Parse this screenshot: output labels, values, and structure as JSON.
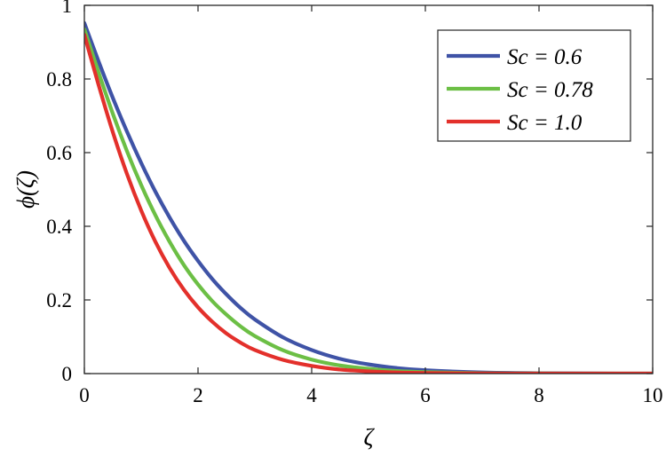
{
  "chart_data": {
    "type": "line",
    "xlabel": "ζ",
    "ylabel": "ϕ(ζ)",
    "xlim": [
      0,
      10
    ],
    "ylim": [
      0,
      1
    ],
    "xticks": [
      "0",
      "2",
      "4",
      "6",
      "8",
      "10"
    ],
    "yticks": [
      "0",
      "0.2",
      "0.4",
      "0.6",
      "0.8",
      "1"
    ],
    "grid": false,
    "legend_position": "top-right",
    "x": [
      0,
      0.25,
      0.5,
      0.75,
      1,
      1.25,
      1.5,
      1.75,
      2,
      2.25,
      2.5,
      2.75,
      3,
      3.5,
      4,
      4.5,
      5,
      5.5,
      6,
      7,
      8,
      9,
      10
    ],
    "series": [
      {
        "name": "Sc = 0.6",
        "color": "#3f53a6",
        "values": [
          0.952,
          0.848,
          0.749,
          0.657,
          0.572,
          0.494,
          0.424,
          0.361,
          0.306,
          0.257,
          0.215,
          0.178,
          0.147,
          0.098,
          0.064,
          0.04,
          0.025,
          0.015,
          0.009,
          0.003,
          0.001,
          0.0003,
          0.0001
        ]
      },
      {
        "name": "Sc = 0.78",
        "color": "#6cbf45",
        "values": [
          0.935,
          0.818,
          0.706,
          0.604,
          0.512,
          0.43,
          0.358,
          0.295,
          0.242,
          0.197,
          0.16,
          0.128,
          0.102,
          0.063,
          0.038,
          0.022,
          0.013,
          0.007,
          0.004,
          0.001,
          0.0003,
          0.0001,
          0.0
        ]
      },
      {
        "name": "Sc = 1.0",
        "color": "#e3302b",
        "values": [
          0.92,
          0.784,
          0.656,
          0.542,
          0.443,
          0.358,
          0.287,
          0.228,
          0.18,
          0.141,
          0.109,
          0.084,
          0.064,
          0.037,
          0.021,
          0.011,
          0.006,
          0.003,
          0.0015,
          0.0004,
          0.0001,
          0.0,
          0.0
        ]
      }
    ]
  }
}
